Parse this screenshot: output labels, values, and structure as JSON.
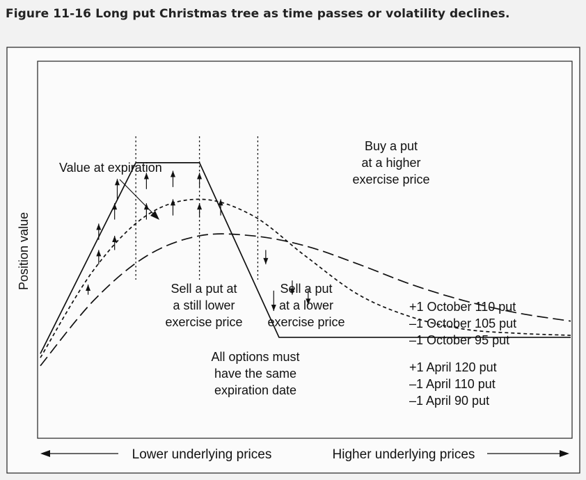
{
  "figure": {
    "title": "Figure 11-16  Long put Christmas tree as time passes or volatility declines."
  },
  "chart_data": {
    "type": "line",
    "ylabel": "Position value",
    "x_axis": {
      "left_label": "Lower underlying prices",
      "right_label": "Higher underlying prices"
    },
    "series": [
      {
        "name": "Value at expiration",
        "line_style": "solid",
        "x": [
          0,
          18,
          30,
          45,
          100
        ],
        "y": [
          0.04,
          0.98,
          0.98,
          0.12,
          0.12
        ]
      },
      {
        "line_style": "short-dash",
        "x": [
          0,
          10,
          20,
          30,
          40,
          50,
          60,
          70,
          80,
          90,
          100
        ],
        "y": [
          0.02,
          0.45,
          0.72,
          0.8,
          0.72,
          0.52,
          0.33,
          0.22,
          0.16,
          0.14,
          0.13
        ]
      },
      {
        "line_style": "long-dash",
        "x": [
          0,
          10,
          20,
          30,
          40,
          50,
          60,
          70,
          80,
          90,
          100
        ],
        "y": [
          -0.02,
          0.3,
          0.52,
          0.62,
          0.62,
          0.57,
          0.48,
          0.38,
          0.3,
          0.24,
          0.2
        ]
      }
    ],
    "exercise_markers": [
      18,
      30,
      41
    ],
    "arrows": {
      "up": [
        {
          "x": 9,
          "from": 0.33,
          "to": 0.38
        },
        {
          "x": 11,
          "from": 0.48,
          "to": 0.55
        },
        {
          "x": 11,
          "from": 0.6,
          "to": 0.68
        },
        {
          "x": 14,
          "from": 0.55,
          "to": 0.62
        },
        {
          "x": 14,
          "from": 0.7,
          "to": 0.78
        },
        {
          "x": 14.5,
          "from": 0.8,
          "to": 0.9
        },
        {
          "x": 20,
          "from": 0.7,
          "to": 0.78
        },
        {
          "x": 20,
          "from": 0.85,
          "to": 0.93
        },
        {
          "x": 25,
          "from": 0.72,
          "to": 0.8
        },
        {
          "x": 25,
          "from": 0.86,
          "to": 0.94
        },
        {
          "x": 30,
          "from": 0.71,
          "to": 0.78
        },
        {
          "x": 30,
          "from": 0.86,
          "to": 0.93
        },
        {
          "x": 34,
          "from": 0.72,
          "to": 0.8
        }
      ],
      "down": [
        {
          "x": 42.5,
          "from": 0.55,
          "to": 0.48
        },
        {
          "x": 44,
          "from": 0.35,
          "to": 0.25
        },
        {
          "x": 47.5,
          "from": 0.4,
          "to": 0.33
        },
        {
          "x": 50.5,
          "from": 0.36,
          "to": 0.28
        }
      ]
    },
    "annotations": {
      "value_at_expiration": "Value at expiration",
      "buy_put": [
        "Buy a put",
        "at a higher",
        "exercise price"
      ],
      "sell_still_lower": [
        "Sell a put at",
        "a still lower",
        "exercise price"
      ],
      "sell_lower": [
        "Sell a put",
        "at a lower",
        "exercise price"
      ],
      "same_expiration": [
        "All options must",
        "have the same",
        "expiration date"
      ],
      "october_positions": [
        "+1 October 110 put",
        "–1 October 105 put",
        "–1 October 95 put"
      ],
      "april_positions": [
        "+1 April 120 put",
        "–1 April 110 put",
        "–1 April 90 put"
      ]
    }
  }
}
